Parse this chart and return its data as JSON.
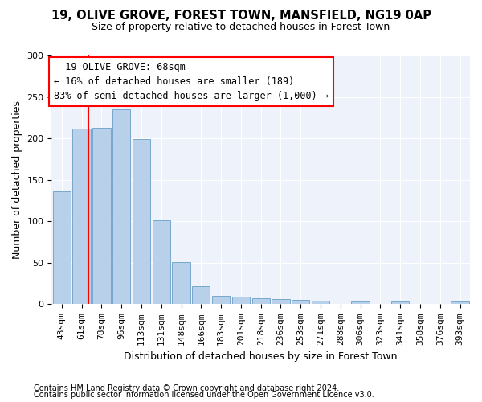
{
  "title1": "19, OLIVE GROVE, FOREST TOWN, MANSFIELD, NG19 0AP",
  "title2": "Size of property relative to detached houses in Forest Town",
  "xlabel": "Distribution of detached houses by size in Forest Town",
  "ylabel": "Number of detached properties",
  "categories": [
    "43sqm",
    "61sqm",
    "78sqm",
    "96sqm",
    "113sqm",
    "131sqm",
    "148sqm",
    "166sqm",
    "183sqm",
    "201sqm",
    "218sqm",
    "236sqm",
    "253sqm",
    "271sqm",
    "288sqm",
    "306sqm",
    "323sqm",
    "341sqm",
    "358sqm",
    "376sqm",
    "393sqm"
  ],
  "values": [
    136,
    212,
    213,
    235,
    199,
    101,
    51,
    22,
    10,
    9,
    7,
    6,
    5,
    4,
    0,
    3,
    0,
    3,
    0,
    0,
    3
  ],
  "bar_color": "#b8d0ea",
  "bar_edge_color": "#6a9fc8",
  "ylim": [
    0,
    300
  ],
  "yticks": [
    0,
    50,
    100,
    150,
    200,
    250,
    300
  ],
  "red_line_x": 1.35,
  "annotation_text": "  19 OLIVE GROVE: 68sqm\n← 16% of detached houses are smaller (189)\n83% of semi-detached houses are larger (1,000) →",
  "footnote1": "Contains HM Land Registry data © Crown copyright and database right 2024.",
  "footnote2": "Contains public sector information licensed under the Open Government Licence v3.0.",
  "bg_color": "#eef2fa",
  "title1_fontsize": 10.5,
  "title2_fontsize": 9,
  "annot_fontsize": 8.5,
  "ylabel_fontsize": 9,
  "xlabel_fontsize": 9,
  "tick_fontsize": 8,
  "footnote_fontsize": 7
}
